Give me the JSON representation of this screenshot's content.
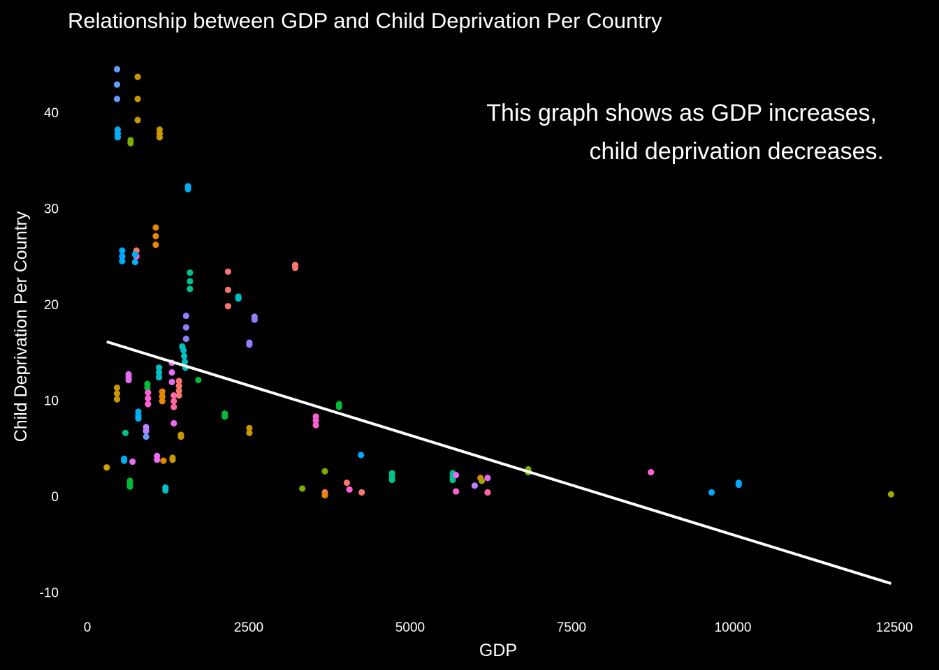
{
  "chart_data": {
    "type": "scatter",
    "title": "Relationship between GDP and Child Deprivation Per Country",
    "xlabel": "GDP",
    "ylabel": "Child Deprivation Per Country",
    "xlim": [
      -200,
      12800
    ],
    "ylim": [
      -11.5,
      46.5
    ],
    "x_ticks": [
      0,
      2500,
      5000,
      7500,
      10000,
      12500
    ],
    "x_tick_labels": [
      "0",
      "2500",
      "5000",
      "7500",
      "10000",
      "12500"
    ],
    "y_ticks": [
      -10,
      0,
      10,
      20,
      30,
      40
    ],
    "y_tick_labels": [
      "-10",
      "0",
      "10",
      "20",
      "30",
      "40"
    ],
    "grid": false,
    "annotation": [
      "This graph shows as GDP increases,",
      "child deprivation decreases."
    ],
    "trend_line": {
      "x": [
        300,
        12450
      ],
      "y": [
        16.1,
        -9.1
      ],
      "color": "#ffffff"
    },
    "points": [
      {
        "x": 300,
        "y": 3.0,
        "color": "#d4a000"
      },
      {
        "x": 460,
        "y": 44.5,
        "color": "#619cff"
      },
      {
        "x": 460,
        "y": 42.9,
        "color": "#619cff"
      },
      {
        "x": 460,
        "y": 41.4,
        "color": "#619cff"
      },
      {
        "x": 780,
        "y": 43.7,
        "color": "#c99800"
      },
      {
        "x": 780,
        "y": 41.4,
        "color": "#c99800"
      },
      {
        "x": 780,
        "y": 39.2,
        "color": "#c99800"
      },
      {
        "x": 470,
        "y": 38.2,
        "color": "#00b0f6"
      },
      {
        "x": 470,
        "y": 37.8,
        "color": "#00b0f6"
      },
      {
        "x": 470,
        "y": 37.4,
        "color": "#00b0f6"
      },
      {
        "x": 670,
        "y": 37.1,
        "color": "#7cae00"
      },
      {
        "x": 670,
        "y": 36.8,
        "color": "#7cae00"
      },
      {
        "x": 1120,
        "y": 38.2,
        "color": "#c99800"
      },
      {
        "x": 1120,
        "y": 37.8,
        "color": "#c99800"
      },
      {
        "x": 1120,
        "y": 37.4,
        "color": "#c99800"
      },
      {
        "x": 1560,
        "y": 32.3,
        "color": "#00b0f6"
      },
      {
        "x": 1560,
        "y": 32.0,
        "color": "#00b0f6"
      },
      {
        "x": 1060,
        "y": 28.0,
        "color": "#e58700"
      },
      {
        "x": 1060,
        "y": 27.1,
        "color": "#e58700"
      },
      {
        "x": 1060,
        "y": 26.2,
        "color": "#e58700"
      },
      {
        "x": 540,
        "y": 25.6,
        "color": "#00a9ff"
      },
      {
        "x": 540,
        "y": 25.0,
        "color": "#00a9ff"
      },
      {
        "x": 540,
        "y": 24.5,
        "color": "#00a9ff"
      },
      {
        "x": 760,
        "y": 25.6,
        "color": "#f8766d"
      },
      {
        "x": 760,
        "y": 25.0,
        "color": "#fd61d1"
      },
      {
        "x": 740,
        "y": 24.4,
        "color": "#00b0f6"
      },
      {
        "x": 740,
        "y": 25.2,
        "color": "#00b0f6"
      },
      {
        "x": 1590,
        "y": 23.3,
        "color": "#00c08b"
      },
      {
        "x": 1590,
        "y": 22.4,
        "color": "#00c08b"
      },
      {
        "x": 1590,
        "y": 21.6,
        "color": "#00c08b"
      },
      {
        "x": 2180,
        "y": 23.4,
        "color": "#f8766d"
      },
      {
        "x": 2180,
        "y": 21.5,
        "color": "#f8766d"
      },
      {
        "x": 2180,
        "y": 19.8,
        "color": "#f8766d"
      },
      {
        "x": 2340,
        "y": 20.8,
        "color": "#00bfc4"
      },
      {
        "x": 2340,
        "y": 20.6,
        "color": "#00bfc4"
      },
      {
        "x": 2590,
        "y": 18.7,
        "color": "#8f7fff"
      },
      {
        "x": 2590,
        "y": 18.4,
        "color": "#8f7fff"
      },
      {
        "x": 2510,
        "y": 16.0,
        "color": "#8f7fff"
      },
      {
        "x": 2510,
        "y": 15.8,
        "color": "#8f7fff"
      },
      {
        "x": 3220,
        "y": 24.1,
        "color": "#f8766d"
      },
      {
        "x": 3220,
        "y": 23.8,
        "color": "#f8766d"
      },
      {
        "x": 1530,
        "y": 18.8,
        "color": "#8f7fff"
      },
      {
        "x": 1530,
        "y": 17.6,
        "color": "#8f7fff"
      },
      {
        "x": 1530,
        "y": 16.4,
        "color": "#8f7fff"
      },
      {
        "x": 1470,
        "y": 15.6,
        "color": "#00bfc4"
      },
      {
        "x": 1490,
        "y": 15.2,
        "color": "#00bfc4"
      },
      {
        "x": 1500,
        "y": 14.6,
        "color": "#00bfc4"
      },
      {
        "x": 1510,
        "y": 14.0,
        "color": "#00bfc4"
      },
      {
        "x": 1520,
        "y": 13.4,
        "color": "#00bfc4"
      },
      {
        "x": 1110,
        "y": 13.4,
        "color": "#00bfc4"
      },
      {
        "x": 1110,
        "y": 12.9,
        "color": "#00bfc4"
      },
      {
        "x": 1110,
        "y": 12.4,
        "color": "#00bfc4"
      },
      {
        "x": 1310,
        "y": 13.9,
        "color": "#e76bf3"
      },
      {
        "x": 1310,
        "y": 12.9,
        "color": "#e76bf3"
      },
      {
        "x": 1310,
        "y": 11.9,
        "color": "#e76bf3"
      },
      {
        "x": 1420,
        "y": 12.0,
        "color": "#f8766d"
      },
      {
        "x": 1420,
        "y": 11.5,
        "color": "#f8766d"
      },
      {
        "x": 1420,
        "y": 11.0,
        "color": "#f8766d"
      },
      {
        "x": 1420,
        "y": 10.5,
        "color": "#f8766d"
      },
      {
        "x": 1340,
        "y": 10.5,
        "color": "#ff67a4"
      },
      {
        "x": 1340,
        "y": 9.9,
        "color": "#ff67a4"
      },
      {
        "x": 1340,
        "y": 9.3,
        "color": "#ff67a4"
      },
      {
        "x": 1720,
        "y": 12.1,
        "color": "#00ba38"
      },
      {
        "x": 640,
        "y": 12.7,
        "color": "#e76bf3"
      },
      {
        "x": 640,
        "y": 12.4,
        "color": "#e76bf3"
      },
      {
        "x": 640,
        "y": 12.1,
        "color": "#e76bf3"
      },
      {
        "x": 460,
        "y": 11.3,
        "color": "#c99800"
      },
      {
        "x": 460,
        "y": 10.7,
        "color": "#c99800"
      },
      {
        "x": 460,
        "y": 10.1,
        "color": "#c99800"
      },
      {
        "x": 930,
        "y": 11.7,
        "color": "#00ba38"
      },
      {
        "x": 930,
        "y": 11.3,
        "color": "#00ba38"
      },
      {
        "x": 940,
        "y": 10.8,
        "color": "#fd61d1"
      },
      {
        "x": 940,
        "y": 10.2,
        "color": "#fd61d1"
      },
      {
        "x": 940,
        "y": 9.6,
        "color": "#fd61d1"
      },
      {
        "x": 1160,
        "y": 10.9,
        "color": "#e58700"
      },
      {
        "x": 1160,
        "y": 10.4,
        "color": "#e58700"
      },
      {
        "x": 1160,
        "y": 9.9,
        "color": "#e58700"
      },
      {
        "x": 790,
        "y": 8.8,
        "color": "#00b0f6"
      },
      {
        "x": 790,
        "y": 8.4,
        "color": "#00b0f6"
      },
      {
        "x": 790,
        "y": 8.1,
        "color": "#00b0f6"
      },
      {
        "x": 910,
        "y": 7.2,
        "color": "#b983ff"
      },
      {
        "x": 910,
        "y": 6.8,
        "color": "#b983ff"
      },
      {
        "x": 910,
        "y": 6.2,
        "color": "#619cff"
      },
      {
        "x": 590,
        "y": 6.6,
        "color": "#00c08b"
      },
      {
        "x": 1340,
        "y": 7.6,
        "color": "#e76bf3"
      },
      {
        "x": 1450,
        "y": 6.4,
        "color": "#c99800"
      },
      {
        "x": 1450,
        "y": 6.2,
        "color": "#c99800"
      },
      {
        "x": 2130,
        "y": 8.6,
        "color": "#00ba38"
      },
      {
        "x": 2130,
        "y": 8.3,
        "color": "#00ba38"
      },
      {
        "x": 2510,
        "y": 7.1,
        "color": "#c99800"
      },
      {
        "x": 2510,
        "y": 6.6,
        "color": "#c99800"
      },
      {
        "x": 3540,
        "y": 8.3,
        "color": "#fd61d1"
      },
      {
        "x": 3540,
        "y": 7.9,
        "color": "#fd61d1"
      },
      {
        "x": 3540,
        "y": 7.4,
        "color": "#fd61d1"
      },
      {
        "x": 3900,
        "y": 9.6,
        "color": "#00ba38"
      },
      {
        "x": 3900,
        "y": 9.3,
        "color": "#00ba38"
      },
      {
        "x": 570,
        "y": 3.9,
        "color": "#00b0f6"
      },
      {
        "x": 570,
        "y": 3.7,
        "color": "#00b0f6"
      },
      {
        "x": 700,
        "y": 3.6,
        "color": "#e76bf3"
      },
      {
        "x": 1080,
        "y": 4.2,
        "color": "#e76bf3"
      },
      {
        "x": 1080,
        "y": 3.8,
        "color": "#e76bf3"
      },
      {
        "x": 1180,
        "y": 3.7,
        "color": "#e58700"
      },
      {
        "x": 1320,
        "y": 4.0,
        "color": "#c99800"
      },
      {
        "x": 1320,
        "y": 3.8,
        "color": "#c99800"
      },
      {
        "x": 660,
        "y": 1.6,
        "color": "#00ba38"
      },
      {
        "x": 660,
        "y": 1.3,
        "color": "#00ba38"
      },
      {
        "x": 660,
        "y": 1.0,
        "color": "#00ba38"
      },
      {
        "x": 1210,
        "y": 0.9,
        "color": "#00bfc4"
      },
      {
        "x": 1210,
        "y": 0.6,
        "color": "#00bfc4"
      },
      {
        "x": 3330,
        "y": 0.8,
        "color": "#7cae00"
      },
      {
        "x": 3680,
        "y": 2.6,
        "color": "#7cae00"
      },
      {
        "x": 3680,
        "y": 0.4,
        "color": "#f8766d"
      },
      {
        "x": 3680,
        "y": 0.1,
        "color": "#e58700"
      },
      {
        "x": 4020,
        "y": 1.4,
        "color": "#f8766d"
      },
      {
        "x": 4060,
        "y": 0.7,
        "color": "#fd61d1"
      },
      {
        "x": 4240,
        "y": 4.3,
        "color": "#00a9ff"
      },
      {
        "x": 4250,
        "y": 0.4,
        "color": "#f8766d"
      },
      {
        "x": 4720,
        "y": 2.4,
        "color": "#00c08b"
      },
      {
        "x": 4720,
        "y": 2.0,
        "color": "#00c08b"
      },
      {
        "x": 4720,
        "y": 1.7,
        "color": "#00c08b"
      },
      {
        "x": 5660,
        "y": 2.4,
        "color": "#00c08b"
      },
      {
        "x": 5660,
        "y": 2.0,
        "color": "#00c08b"
      },
      {
        "x": 5660,
        "y": 1.7,
        "color": "#00c08b"
      },
      {
        "x": 5710,
        "y": 2.2,
        "color": "#e76bf3"
      },
      {
        "x": 5710,
        "y": 0.5,
        "color": "#fd61d1"
      },
      {
        "x": 6000,
        "y": 1.1,
        "color": "#b983ff"
      },
      {
        "x": 6090,
        "y": 1.9,
        "color": "#e58700"
      },
      {
        "x": 6110,
        "y": 1.6,
        "color": "#a3a500"
      },
      {
        "x": 6200,
        "y": 1.9,
        "color": "#e76bf3"
      },
      {
        "x": 6200,
        "y": 0.4,
        "color": "#ff67a4"
      },
      {
        "x": 6830,
        "y": 2.8,
        "color": "#7cae00"
      },
      {
        "x": 6830,
        "y": 2.5,
        "color": "#7cae00"
      },
      {
        "x": 8730,
        "y": 2.5,
        "color": "#fd61d1"
      },
      {
        "x": 9670,
        "y": 0.4,
        "color": "#00a9ff"
      },
      {
        "x": 10090,
        "y": 1.4,
        "color": "#00a9ff"
      },
      {
        "x": 10090,
        "y": 1.2,
        "color": "#00a9ff"
      },
      {
        "x": 12450,
        "y": 0.2,
        "color": "#a3a500"
      }
    ]
  }
}
